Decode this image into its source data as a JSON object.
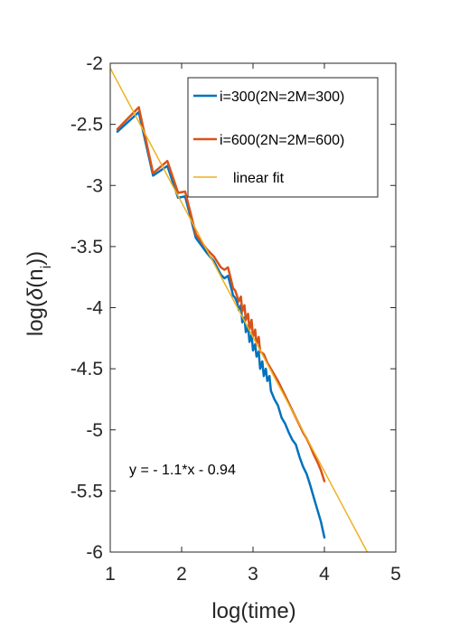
{
  "chart_data": {
    "type": "line",
    "xlabel": "log(time)",
    "ylabel": "log(δ(n_i))",
    "xlim": [
      1,
      5
    ],
    "ylim": [
      -6,
      -2
    ],
    "xticks": [
      "1",
      "2",
      "3",
      "4",
      "5"
    ],
    "yticks": [
      "-2",
      "-2.5",
      "-3",
      "-3.5",
      "-4",
      "-4.5",
      "-5",
      "-5.5",
      "-6"
    ],
    "grid": false,
    "legend_position": "top-right",
    "annotation": "y = - 1.1*x - 0.94",
    "colors": {
      "series1": "#0072BD",
      "series2": "#D95319",
      "fit": "#EDB120",
      "axes": "#262626"
    },
    "series": [
      {
        "name": "i=300(2N=2M=300)",
        "x": [
          1.1,
          1.4,
          1.6,
          1.8,
          1.95,
          2.05,
          2.2,
          2.35,
          2.45,
          2.55,
          2.6,
          2.65,
          2.7,
          2.72,
          2.75,
          2.78,
          2.8,
          2.83,
          2.85,
          2.88,
          2.9,
          2.93,
          2.95,
          2.98,
          3.0,
          3.03,
          3.05,
          3.08,
          3.1,
          3.13,
          3.15,
          3.18,
          3.2,
          3.23,
          3.25,
          3.3,
          3.35,
          3.4,
          3.45,
          3.5,
          3.55,
          3.6,
          3.65,
          3.7,
          3.75,
          3.8,
          3.85,
          3.9,
          3.95,
          4.0
        ],
        "y": [
          -2.56,
          -2.4,
          -2.92,
          -2.84,
          -3.1,
          -3.09,
          -3.43,
          -3.55,
          -3.62,
          -3.73,
          -3.76,
          -3.74,
          -3.85,
          -3.9,
          -3.92,
          -3.96,
          -4.02,
          -3.98,
          -4.12,
          -4.08,
          -4.2,
          -4.15,
          -4.28,
          -4.22,
          -4.35,
          -4.3,
          -4.4,
          -4.36,
          -4.5,
          -4.44,
          -4.56,
          -4.5,
          -4.6,
          -4.56,
          -4.68,
          -4.75,
          -4.8,
          -4.9,
          -4.95,
          -5.02,
          -5.08,
          -5.12,
          -5.22,
          -5.3,
          -5.36,
          -5.45,
          -5.55,
          -5.65,
          -5.75,
          -5.88
        ]
      },
      {
        "name": "i=600(2N=2M=600)",
        "x": [
          1.1,
          1.4,
          1.6,
          1.8,
          1.95,
          2.05,
          2.2,
          2.35,
          2.45,
          2.55,
          2.6,
          2.65,
          2.7,
          2.72,
          2.75,
          2.78,
          2.8,
          2.83,
          2.85,
          2.88,
          2.9,
          2.93,
          2.95,
          2.98,
          3.0,
          3.03,
          3.05,
          3.08,
          3.1,
          3.15,
          3.2,
          3.25,
          3.3,
          3.35,
          3.4,
          3.45,
          3.5,
          3.55,
          3.6,
          3.65,
          3.7,
          3.75,
          3.8,
          3.85,
          3.9,
          3.95,
          4.0
        ],
        "y": [
          -2.54,
          -2.36,
          -2.9,
          -2.8,
          -3.06,
          -3.05,
          -3.4,
          -3.52,
          -3.58,
          -3.67,
          -3.69,
          -3.67,
          -3.79,
          -3.84,
          -3.86,
          -3.91,
          -3.95,
          -3.91,
          -4.03,
          -3.98,
          -4.1,
          -4.05,
          -4.18,
          -4.1,
          -4.24,
          -4.18,
          -4.3,
          -4.24,
          -4.36,
          -4.38,
          -4.45,
          -4.5,
          -4.55,
          -4.6,
          -4.66,
          -4.72,
          -4.78,
          -4.84,
          -4.9,
          -4.96,
          -5.02,
          -5.07,
          -5.13,
          -5.2,
          -5.26,
          -5.33,
          -5.42
        ]
      },
      {
        "name": "linear fit",
        "x": [
          1.0,
          4.6
        ],
        "y": [
          -2.04,
          -6.0
        ]
      }
    ]
  }
}
